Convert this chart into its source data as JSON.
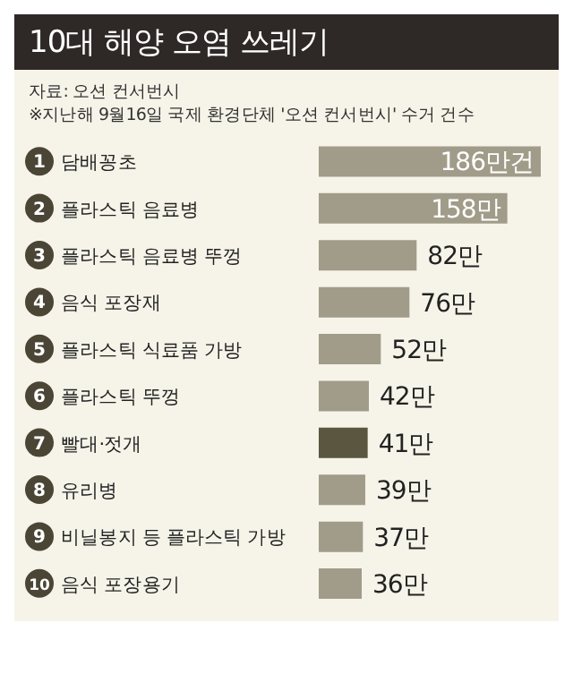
{
  "chart_data": {
    "type": "bar",
    "orientation": "horizontal",
    "title": "10대 해양 오염 쓰레기",
    "annotations": [
      "자료: 오션 컨서번시",
      "※지난해 9월16일 국제 환경단체 '오션 컨서번시' 수거 건수"
    ],
    "categories": [
      "1 담배꽁초",
      "2 플라스틱 음료병",
      "3 플라스틱 음료병 뚜껑",
      "4 음식 포장재",
      "5 플라스틱 식료품 가방",
      "6 플라스틱 뚜껑",
      "7 빨대·젓개",
      "8 유리병",
      "9 비닐봉지 등 플라스틱 가방",
      "10 음식 포장용기"
    ],
    "values": [
      186,
      158,
      82,
      76,
      52,
      42,
      41,
      39,
      37,
      36
    ],
    "colors": [
      "#a19c89",
      "#a19c89",
      "#a19c89",
      "#a19c89",
      "#a19c89",
      "#a19c89",
      "#5b5640",
      "#a19c89",
      "#a19c89",
      "#a19c89"
    ],
    "value_labels": [
      "186만건",
      "158만",
      "82만",
      "76만",
      "52만",
      "42만",
      "41만",
      "39만",
      "37만",
      "36만"
    ]
  }
}
